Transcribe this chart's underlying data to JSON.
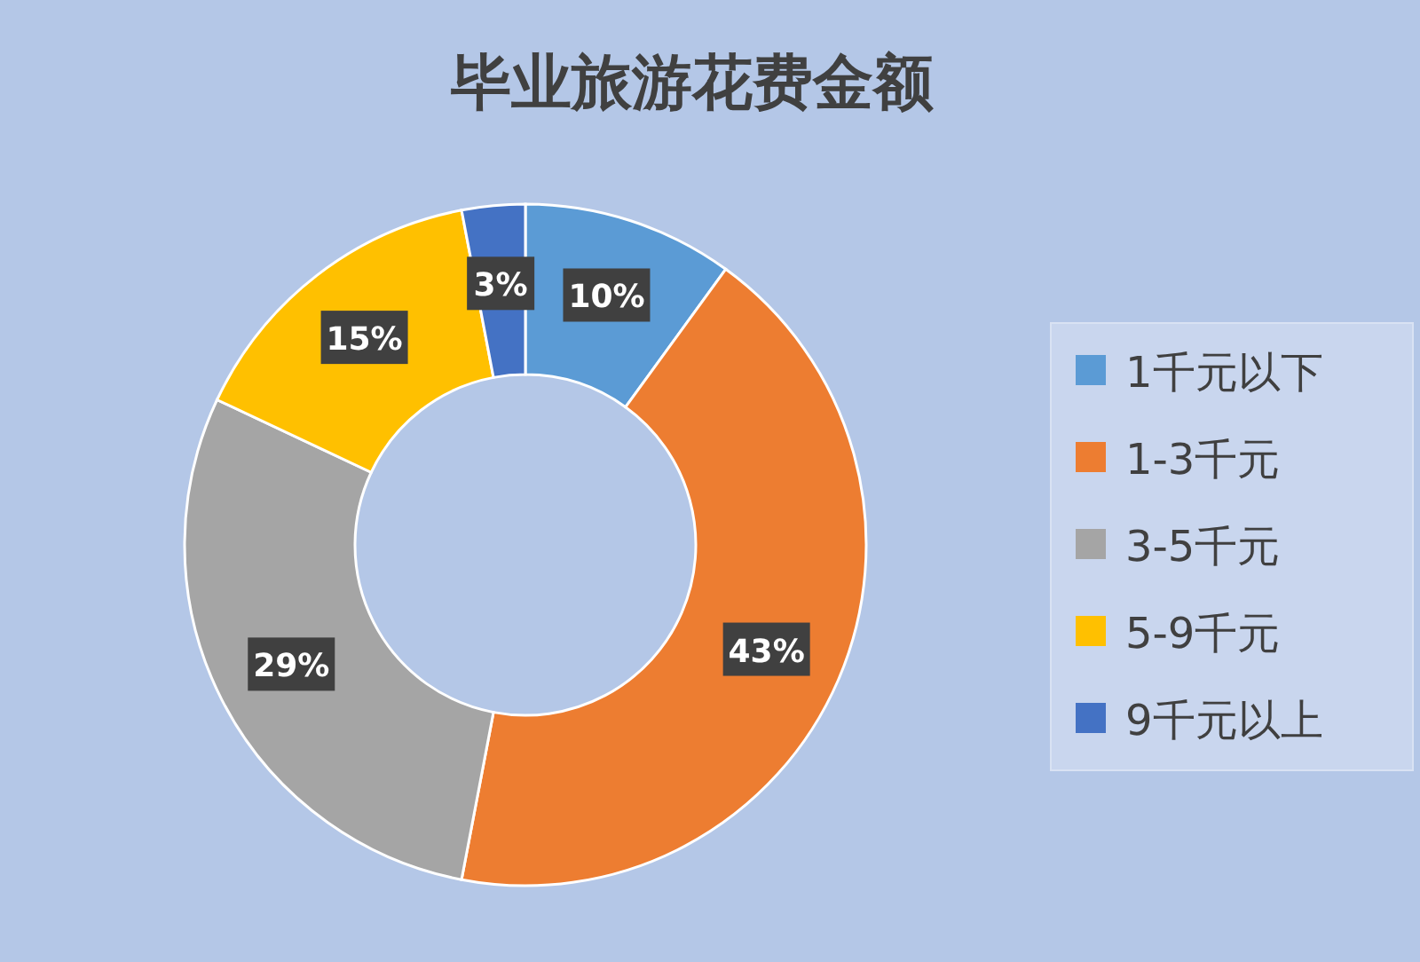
{
  "chart_data": {
    "type": "donut",
    "title": "毕业旅游花费金额",
    "categories": [
      "1千元以下",
      "1-3千元",
      "3-5千元",
      "5-9千元",
      "9千元以上"
    ],
    "values": [
      10,
      43,
      29,
      15,
      3
    ],
    "colors": [
      "#5b9bd5",
      "#ed7d31",
      "#a5a5a5",
      "#ffc000",
      "#4472c4"
    ],
    "value_labels": [
      "10%",
      "43%",
      "29%",
      "15%",
      "3%"
    ],
    "legend": "right"
  }
}
